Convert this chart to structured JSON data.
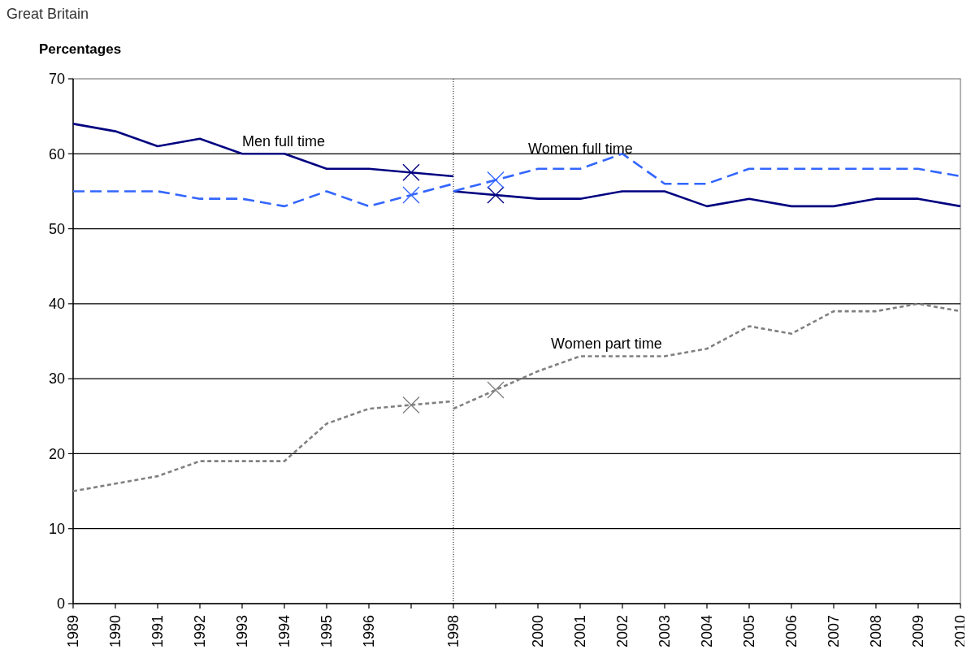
{
  "chart_data": {
    "type": "line",
    "title": "Great Britain",
    "ylabel": "Percentages",
    "xlim": [
      1989,
      2010
    ],
    "xticks": [
      1989,
      1990,
      1991,
      1992,
      1993,
      1994,
      1995,
      1996,
      {
        "value": 1997,
        "label": null
      },
      1998,
      {
        "value": 1999,
        "label": null
      },
      2000,
      2001,
      2002,
      2003,
      2004,
      2005,
      2006,
      2007,
      2008,
      2009,
      2010
    ],
    "ylim": [
      0,
      70
    ],
    "yticks": [
      0,
      10,
      20,
      30,
      40,
      50,
      60,
      70
    ],
    "grid": "y",
    "ref_lines": [
      {
        "axis": "x",
        "value": 1998,
        "line_style": "dotted",
        "color": "#000000"
      }
    ],
    "series": [
      {
        "name": "Men full time",
        "color": "#000080",
        "line_style": "solid",
        "x": [
          1989,
          1990,
          1991,
          1992,
          1993,
          1994,
          1995,
          1996,
          1998
        ],
        "values": [
          64,
          63,
          61,
          62,
          60,
          60,
          58,
          58,
          57
        ]
      },
      {
        "color": "#000080",
        "line_style": "solid",
        "x": [
          1998,
          2000,
          2001,
          2002,
          2003,
          2004,
          2005,
          2006,
          2007,
          2008,
          2009,
          2010
        ],
        "values": [
          55,
          54,
          54,
          55,
          55,
          53,
          54,
          53,
          53,
          54,
          54,
          53
        ]
      },
      {
        "color": "#3366ff",
        "line_style": "dashed",
        "x": [
          1989,
          1990,
          1991,
          1992,
          1993,
          1994,
          1995,
          1996,
          1998
        ],
        "values": [
          55,
          55,
          55,
          54,
          54,
          53,
          55,
          53,
          56
        ]
      },
      {
        "name": "Women full time",
        "color": "#3366ff",
        "line_style": "dashed",
        "x": [
          1998,
          2000,
          2001,
          2002,
          2003,
          2004,
          2005,
          2006,
          2007,
          2008,
          2009,
          2010
        ],
        "values": [
          55,
          58,
          58,
          60,
          56,
          56,
          58,
          58,
          58,
          58,
          58,
          57
        ]
      },
      {
        "color": "#808080",
        "line_style": "dotted",
        "x": [
          1989,
          1990,
          1991,
          1992,
          1993,
          1994,
          1995,
          1996,
          1998
        ],
        "values": [
          15,
          16,
          17,
          19,
          19,
          19,
          24,
          26,
          27
        ]
      },
      {
        "name": "Women part time",
        "color": "#808080",
        "line_style": "dotted",
        "x": [
          1998,
          2000,
          2001,
          2002,
          2003,
          2004,
          2005,
          2006,
          2007,
          2008,
          2009,
          2010
        ],
        "values": [
          26,
          31,
          33,
          33,
          33,
          34,
          37,
          36,
          39,
          39,
          40,
          39
        ]
      },
      {
        "type": "scatter",
        "color": "#000080",
        "marker": "cross",
        "x": [
          1997,
          1999
        ],
        "values": [
          57.5,
          54.5
        ]
      },
      {
        "type": "scatter",
        "color": "#3366ff",
        "marker": "cross",
        "x": [
          1997,
          1999
        ],
        "values": [
          54.5,
          56.5
        ]
      },
      {
        "type": "scatter",
        "color": "#808080",
        "marker": "cross",
        "x": [
          1997,
          1999
        ],
        "values": [
          26.5,
          28.5
        ]
      }
    ]
  }
}
